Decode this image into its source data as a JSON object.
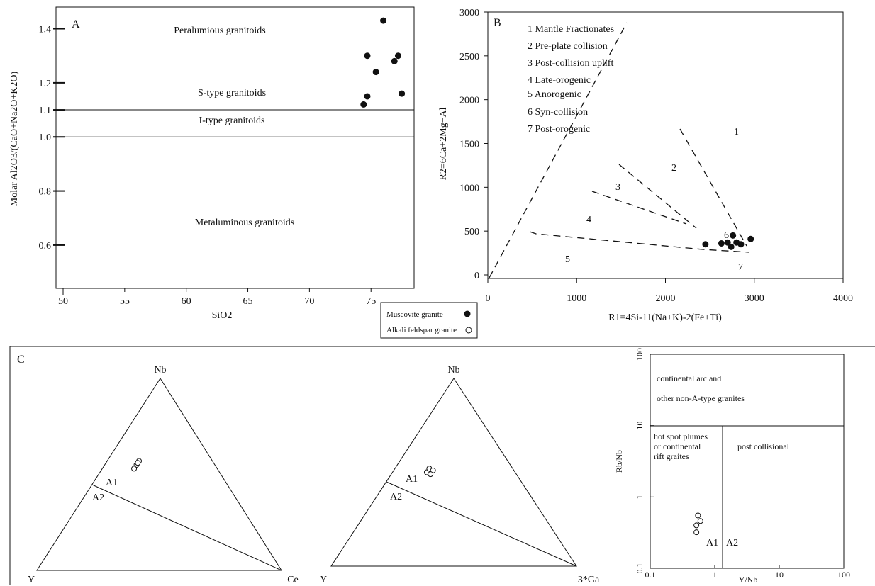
{
  "colors": {
    "ink": "#111111",
    "background": "#ffffff"
  },
  "legend": {
    "items": [
      {
        "label": "Muscovite granite",
        "marker": "filled-circle"
      },
      {
        "label": "Alkali feldspar granite",
        "marker": "open-circle"
      }
    ]
  },
  "chart_data": [
    {
      "panel": "A",
      "type": "scatter",
      "xlabel": "SiO2",
      "ylabel": "Molar Al2O3/(CaO+Na2O+K2O)",
      "xlim": [
        50,
        78.5
      ],
      "ylim": [
        0.44,
        1.48
      ],
      "xticks": [
        50,
        55,
        60,
        65,
        70,
        75
      ],
      "yticks": [
        "0.6",
        "0.8",
        "1.0",
        "1.1",
        "1.2",
        "1.4"
      ],
      "boundaries": [
        1.0,
        1.1
      ],
      "fields": [
        "Peralumious granitoids",
        "S-type granitoids",
        "I-type granitoids",
        "Metaluminous granitoids"
      ],
      "series": [
        {
          "name": "Muscovite granite",
          "marker": "filled",
          "x": [
            76.0,
            74.7,
            75.4,
            76.9,
            77.2,
            74.7,
            77.5,
            74.4
          ],
          "y": [
            1.43,
            1.3,
            1.24,
            1.28,
            1.3,
            1.15,
            1.16,
            1.12
          ]
        }
      ]
    },
    {
      "panel": "B",
      "type": "scatter",
      "xlabel": "R1=4Si-11(Na+K)-2(Fe+Ti)",
      "ylabel": "R2=6Ca+2Mg+Al",
      "xlim": [
        0,
        4000
      ],
      "ylim": [
        -50,
        3000
      ],
      "xticks": [
        "0",
        "1000",
        "2000",
        "3000",
        "4000"
      ],
      "yticks": [
        "0",
        "500",
        "1000",
        "1500",
        "2000",
        "2500",
        "3000"
      ],
      "fields": [
        "1 Mantle Fractionates",
        "2 Pre-plate collision",
        "3 Post-collision uplift",
        "4 Late-orogenic",
        "5 Anorogenic",
        "6 Syn-collision",
        "7 Post-orogenic"
      ],
      "field_numbers": [
        "1",
        "2",
        "3",
        "4",
        "5",
        "6",
        "7"
      ],
      "series": [
        {
          "name": "Muscovite granite",
          "marker": "filled",
          "x": [
            2450,
            2630,
            2700,
            2740,
            2760,
            2800,
            2850,
            2960
          ],
          "y": [
            350,
            360,
            370,
            320,
            450,
            370,
            350,
            410
          ]
        }
      ]
    },
    {
      "panel": "C",
      "type": "scatter",
      "subtype": "ternary",
      "vertices": [
        "Nb",
        "Y",
        "Ce"
      ],
      "fields": [
        "A1",
        "A2"
      ],
      "series": [
        {
          "name": "Alkali feldspar granite",
          "marker": "open",
          "Nb": [
            0.55,
            0.57,
            0.56,
            0.53
          ],
          "Y": [
            0.32,
            0.3,
            0.31,
            0.34
          ],
          "Ce": [
            0.13,
            0.13,
            0.13,
            0.13
          ]
        }
      ]
    },
    {
      "panel": "C",
      "type": "scatter",
      "subtype": "ternary",
      "vertices": [
        "Nb",
        "Y",
        "3*Ga"
      ],
      "fields": [
        "A1",
        "A2"
      ],
      "series": [
        {
          "name": "Alkali feldspar granite",
          "marker": "open",
          "Nb": [
            0.5,
            0.52,
            0.51,
            0.49
          ],
          "Y": [
            0.36,
            0.34,
            0.33,
            0.35
          ],
          "3*Ga": [
            0.14,
            0.14,
            0.16,
            0.16
          ]
        }
      ]
    },
    {
      "panel": "C",
      "type": "scatter",
      "xlabel": "Y/Nb",
      "ylabel": "Rb/Nb",
      "xscale": "log",
      "yscale": "log",
      "xlim": [
        0.1,
        100
      ],
      "ylim": [
        0.1,
        100
      ],
      "xticks": [
        "0.1",
        "1",
        "10",
        "100"
      ],
      "yticks": [
        "0.1",
        "1",
        "10",
        "100"
      ],
      "fields": [
        "continental arc and",
        "other non-A-type granites",
        "hot spot plumes",
        "or continental",
        "rift graites",
        "post collisional",
        "A1",
        "A2"
      ],
      "series": [
        {
          "name": "Alkali feldspar granite",
          "marker": "open",
          "x": [
            0.55,
            0.6,
            0.52,
            0.52
          ],
          "y": [
            0.55,
            0.46,
            0.4,
            0.32
          ]
        }
      ]
    }
  ]
}
